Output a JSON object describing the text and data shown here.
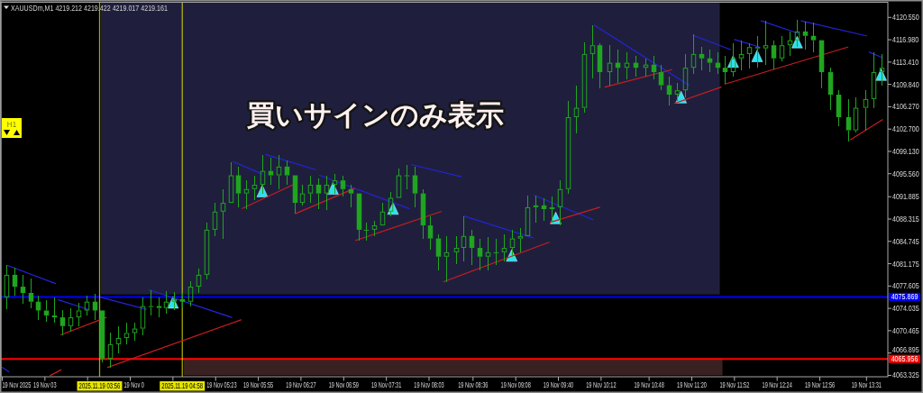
{
  "chart_data": {
    "type": "candlestick",
    "title": "XAUUSDm,M1 4219.212 4219.422 4219.017 4219.161",
    "annotations": [
      "買いサインのみ表示",
      "H1",
      "19 Nov 2025"
    ],
    "color": "#1fa51f",
    "xlim": [
      "2025-11-19T02:42",
      "2025-11-19T13:47"
    ],
    "ylim": [
      4063.1,
      4122.9
    ],
    "xticks": [
      {
        "value": "2025-11-19T02:43",
        "label": null
      },
      {
        "value": "2025-11-19T03:15",
        "label": "19 Nov 03"
      },
      {
        "value": "2025-11-19T03:47",
        "label": null
      },
      {
        "value": "2025-11-19T04:19",
        "label": "19 Nov 0"
      },
      {
        "value": "2025-11-19T04:51",
        "label": null
      },
      {
        "value": "2025-11-19T05:23",
        "label": "19 Nov 05:23"
      },
      {
        "value": "2025-11-19T05:55",
        "label": "19 Nov 05:55"
      },
      {
        "value": "2025-11-19T06:27",
        "label": "19 Nov 06:27"
      },
      {
        "value": "2025-11-19T06:59",
        "label": "19 Nov 06:59"
      },
      {
        "value": "2025-11-19T07:31",
        "label": "19 Nov 07:31"
      },
      {
        "value": "2025-11-19T08:03",
        "label": "19 Nov 08:03"
      },
      {
        "value": "2025-11-19T08:36",
        "label": "19 Nov 08:36"
      },
      {
        "value": "2025-11-19T09:08",
        "label": "19 Nov 09:08"
      },
      {
        "value": "2025-11-19T09:40",
        "label": "19 Nov 09:40"
      },
      {
        "value": "2025-11-19T10:12",
        "label": "19 Nov 10:12"
      },
      {
        "value": "2025-11-19T10:48",
        "label": "19 Nov 10:48"
      },
      {
        "value": "2025-11-19T11:20",
        "label": "19 Nov 11:20"
      },
      {
        "value": "2025-11-19T11:52",
        "label": "19 Nov 11:52"
      },
      {
        "value": "2025-11-19T12:24",
        "label": "19 Nov 12:24"
      },
      {
        "value": "2025-11-19T12:56",
        "label": "19 Nov 12:56"
      },
      {
        "value": "2025-11-19T13:31",
        "label": "19 Nov 13:31"
      }
    ],
    "yticks": [
      {
        "value": 4063.325,
        "label": "4063.325"
      },
      {
        "value": 4066.895,
        "label": "4066.895"
      },
      {
        "value": 4070.465,
        "label": "4070.465"
      },
      {
        "value": 4074.035,
        "label": "4074.035"
      },
      {
        "value": 4077.605,
        "label": "4077.605"
      },
      {
        "value": 4081.175,
        "label": "4081.175"
      },
      {
        "value": 4084.745,
        "label": "4084.745"
      },
      {
        "value": 4088.315,
        "label": "4088.315"
      },
      {
        "value": 4091.885,
        "label": "4091.885"
      },
      {
        "value": 4095.56,
        "label": "4095.560"
      },
      {
        "value": 4099.13,
        "label": "4099.130"
      },
      {
        "value": 4102.7,
        "label": "4102.700"
      },
      {
        "value": 4106.27,
        "label": "4106.270"
      },
      {
        "value": 4109.84,
        "label": "4109.840"
      },
      {
        "value": 4113.41,
        "label": "4113.410"
      },
      {
        "value": 4116.98,
        "label": "4116.980"
      },
      {
        "value": 4120.55,
        "label": "4120.550"
      }
    ],
    "x": [
      "2025-11-19T02:46",
      "2025-11-19T02:52",
      "2025-11-19T02:58",
      "2025-11-19T03:04",
      "2025-11-19T03:10",
      "2025-11-19T03:16",
      "2025-11-19T03:22",
      "2025-11-19T03:28",
      "2025-11-19T03:34",
      "2025-11-19T03:40",
      "2025-11-19T03:46",
      "2025-11-19T03:52",
      "2025-11-19T03:58",
      "2025-11-19T04:04",
      "2025-11-19T04:10",
      "2025-11-19T04:16",
      "2025-11-19T04:22",
      "2025-11-19T04:28",
      "2025-11-19T04:34",
      "2025-11-19T04:40",
      "2025-11-19T04:46",
      "2025-11-19T04:52",
      "2025-11-19T04:58",
      "2025-11-19T05:04",
      "2025-11-19T05:10",
      "2025-11-19T05:16",
      "2025-11-19T05:22",
      "2025-11-19T05:28",
      "2025-11-19T05:34",
      "2025-11-19T05:40",
      "2025-11-19T05:46",
      "2025-11-19T05:52",
      "2025-11-19T05:58",
      "2025-11-19T06:04",
      "2025-11-19T06:10",
      "2025-11-19T06:16",
      "2025-11-19T06:22",
      "2025-11-19T06:28",
      "2025-11-19T06:34",
      "2025-11-19T06:40",
      "2025-11-19T06:46",
      "2025-11-19T06:52",
      "2025-11-19T06:58",
      "2025-11-19T07:04",
      "2025-11-19T07:10",
      "2025-11-19T07:16",
      "2025-11-19T07:22",
      "2025-11-19T07:28",
      "2025-11-19T07:34",
      "2025-11-19T07:40",
      "2025-11-19T07:46",
      "2025-11-19T07:52",
      "2025-11-19T07:58",
      "2025-11-19T08:04",
      "2025-11-19T08:10",
      "2025-11-19T08:16",
      "2025-11-19T08:23",
      "2025-11-19T08:29",
      "2025-11-19T08:35",
      "2025-11-19T08:41",
      "2025-11-19T08:47",
      "2025-11-19T08:53",
      "2025-11-19T08:59",
      "2025-11-19T09:05",
      "2025-11-19T09:11",
      "2025-11-19T09:17",
      "2025-11-19T09:23",
      "2025-11-19T09:29",
      "2025-11-19T09:35",
      "2025-11-19T09:41",
      "2025-11-19T09:47",
      "2025-11-19T09:53",
      "2025-11-19T09:59",
      "2025-11-19T10:05",
      "2025-11-19T10:11",
      "2025-11-19T10:18",
      "2025-11-19T10:24",
      "2025-11-19T10:31",
      "2025-11-19T10:38",
      "2025-11-19T10:45",
      "2025-11-19T10:51",
      "2025-11-19T10:57",
      "2025-11-19T11:03",
      "2025-11-19T11:09",
      "2025-11-19T11:15",
      "2025-11-19T11:21",
      "2025-11-19T11:27",
      "2025-11-19T11:33",
      "2025-11-19T11:39",
      "2025-11-19T11:45",
      "2025-11-19T11:51",
      "2025-11-19T11:57",
      "2025-11-19T12:03",
      "2025-11-19T12:09",
      "2025-11-19T12:15",
      "2025-11-19T12:21",
      "2025-11-19T12:27",
      "2025-11-19T12:33",
      "2025-11-19T12:39",
      "2025-11-19T12:45",
      "2025-11-19T12:51",
      "2025-11-19T12:57",
      "2025-11-19T13:04",
      "2025-11-19T13:10",
      "2025-11-19T13:17",
      "2025-11-19T13:23",
      "2025-11-19T13:30",
      "2025-11-19T13:36",
      "2025-11-19T13:42"
    ],
    "ohlc": [
      [
        4075.8,
        4080.9,
        4073.9,
        4079.4
      ],
      [
        4079.4,
        4080.6,
        4076.1,
        4077.5
      ],
      [
        4077.5,
        4079.4,
        4074.8,
        4076.5
      ],
      [
        4076.5,
        4078.8,
        4074.1,
        4075.1
      ],
      [
        4075.1,
        4076.1,
        4072.2,
        4073.7
      ],
      [
        4073.7,
        4075.4,
        4071.9,
        4072.9
      ],
      [
        4072.9,
        4075.8,
        4071.8,
        4072.6
      ],
      [
        4072.6,
        4073.7,
        4069.8,
        4071.2
      ],
      [
        4071.2,
        4074.1,
        4070.3,
        4072.6
      ],
      [
        4072.6,
        4074.9,
        4071.2,
        4073.7
      ],
      [
        4073.7,
        4076.1,
        4072.9,
        4075.1
      ],
      [
        4075.1,
        4076.4,
        4072.2,
        4073.7
      ],
      [
        4073.7,
        4073.7,
        4065.4,
        4066.0
      ],
      [
        4066.0,
        4070.1,
        4064.6,
        4068.3
      ],
      [
        4068.3,
        4071.2,
        4066.9,
        4069.3
      ],
      [
        4069.3,
        4071.8,
        4068.3,
        4070.1
      ],
      [
        4070.1,
        4071.8,
        4068.9,
        4070.8
      ],
      [
        4070.8,
        4075.8,
        4069.8,
        4074.4
      ],
      [
        4074.4,
        4077.0,
        4072.9,
        4074.4
      ],
      [
        4074.4,
        4075.8,
        4072.6,
        4074.1
      ],
      [
        4074.1,
        4076.8,
        4073.2,
        4075.1
      ],
      [
        4075.1,
        4076.7,
        4073.7,
        4075.5
      ],
      [
        4075.5,
        4076.5,
        4074.1,
        4075.1
      ],
      [
        4075.1,
        4078.4,
        4074.4,
        4077.5
      ],
      [
        4077.5,
        4080.4,
        4076.5,
        4079.4
      ],
      [
        4079.4,
        4087.8,
        4078.7,
        4086.6
      ],
      [
        4086.6,
        4090.9,
        4085.6,
        4089.5
      ],
      [
        4089.5,
        4093.1,
        4085.2,
        4090.9
      ],
      [
        4090.9,
        4097.4,
        4090.9,
        4095.3
      ],
      [
        4095.3,
        4096.7,
        4090.2,
        4092.4
      ],
      [
        4092.4,
        4094.5,
        4089.9,
        4093.1
      ],
      [
        4093.1,
        4095.3,
        4091.4,
        4093.8
      ],
      [
        4093.8,
        4098.6,
        4092.4,
        4096.0
      ],
      [
        4096.0,
        4098.1,
        4093.8,
        4095.3
      ],
      [
        4095.3,
        4098.6,
        4093.1,
        4096.7
      ],
      [
        4096.7,
        4097.7,
        4093.8,
        4095.3
      ],
      [
        4095.3,
        4095.3,
        4089.2,
        4090.9
      ],
      [
        4090.9,
        4093.8,
        4090.5,
        4092.4
      ],
      [
        4092.4,
        4095.3,
        4090.9,
        4093.8
      ],
      [
        4093.8,
        4094.8,
        4089.9,
        4092.4
      ],
      [
        4092.4,
        4095.3,
        4089.8,
        4093.8
      ],
      [
        4093.8,
        4095.5,
        4092.4,
        4094.5
      ],
      [
        4094.5,
        4095.3,
        4091.9,
        4093.1
      ],
      [
        4093.1,
        4093.8,
        4090.2,
        4092.4
      ],
      [
        4092.4,
        4092.4,
        4084.9,
        4086.6
      ],
      [
        4086.6,
        4087.8,
        4084.9,
        4086.6
      ],
      [
        4086.6,
        4088.1,
        4085.6,
        4087.3
      ],
      [
        4087.3,
        4090.9,
        4087.3,
        4089.5
      ],
      [
        4089.5,
        4092.7,
        4088.8,
        4091.7
      ],
      [
        4091.7,
        4096.4,
        4091.7,
        4095.3
      ],
      [
        4095.3,
        4097.0,
        4093.1,
        4095.3
      ],
      [
        4095.3,
        4096.7,
        4090.2,
        4092.4
      ],
      [
        4092.4,
        4093.1,
        4085.2,
        4087.3
      ],
      [
        4087.3,
        4088.8,
        4083.4,
        4085.2
      ],
      [
        4085.2,
        4085.9,
        4080.1,
        4082.3
      ],
      [
        4082.3,
        4085.6,
        4078.2,
        4083.0
      ],
      [
        4083.0,
        4085.6,
        4081.1,
        4083.7
      ],
      [
        4083.7,
        4088.8,
        4081.6,
        4085.6
      ],
      [
        4085.6,
        4086.6,
        4080.9,
        4083.7
      ],
      [
        4083.7,
        4085.2,
        4080.1,
        4082.3
      ],
      [
        4082.3,
        4085.5,
        4080.1,
        4083.0
      ],
      [
        4083.0,
        4085.2,
        4080.9,
        4083.0
      ],
      [
        4083.0,
        4085.9,
        4081.6,
        4083.7
      ],
      [
        4083.7,
        4086.6,
        4082.3,
        4085.2
      ],
      [
        4085.2,
        4086.9,
        4083.0,
        4085.6
      ],
      [
        4085.6,
        4092.1,
        4085.6,
        4090.2
      ],
      [
        4090.2,
        4092.1,
        4087.8,
        4090.5
      ],
      [
        4090.5,
        4091.7,
        4088.1,
        4089.9
      ],
      [
        4089.9,
        4091.9,
        4087.8,
        4090.2
      ],
      [
        4090.2,
        4094.5,
        4087.3,
        4093.1
      ],
      [
        4093.1,
        4107.2,
        4092.4,
        4104.6
      ],
      [
        4104.6,
        4109.7,
        4102.0,
        4106.1
      ],
      [
        4106.1,
        4116.6,
        4105.3,
        4114.7
      ],
      [
        4114.7,
        4119.3,
        4110.8,
        4116.1
      ],
      [
        4116.1,
        4116.4,
        4109.2,
        4111.8
      ],
      [
        4111.8,
        4116.1,
        4109.7,
        4113.3
      ],
      [
        4113.3,
        4115.4,
        4110.1,
        4112.5
      ],
      [
        4112.5,
        4115.0,
        4110.7,
        4113.3
      ],
      [
        4113.3,
        4114.4,
        4111.1,
        4112.5
      ],
      [
        4112.5,
        4114.0,
        4111.1,
        4113.0
      ],
      [
        4113.0,
        4114.4,
        4110.7,
        4111.8
      ],
      [
        4111.8,
        4113.0,
        4108.9,
        4109.7
      ],
      [
        4109.7,
        4111.1,
        4106.5,
        4108.2
      ],
      [
        4108.2,
        4110.1,
        4107.2,
        4108.9
      ],
      [
        4108.9,
        4114.7,
        4107.8,
        4112.5
      ],
      [
        4112.5,
        4117.9,
        4111.5,
        4114.7
      ],
      [
        4114.7,
        4115.8,
        4112.1,
        4114.0
      ],
      [
        4114.0,
        4115.4,
        4111.8,
        4113.3
      ],
      [
        4113.3,
        4115.0,
        4111.5,
        4112.5
      ],
      [
        4112.5,
        4114.4,
        4109.9,
        4111.8
      ],
      [
        4111.8,
        4116.4,
        4111.1,
        4114.0
      ],
      [
        4114.0,
        4116.9,
        4112.1,
        4114.7
      ],
      [
        4114.7,
        4116.4,
        4112.4,
        4115.8
      ],
      [
        4115.8,
        4117.6,
        4112.5,
        4115.6
      ],
      [
        4115.6,
        4120.0,
        4113.0,
        4116.1
      ],
      [
        4116.1,
        4116.9,
        4112.2,
        4114.0
      ],
      [
        4114.0,
        4117.6,
        4113.5,
        4116.1
      ],
      [
        4116.1,
        4118.3,
        4114.4,
        4116.9
      ],
      [
        4116.9,
        4120.2,
        4115.8,
        4118.3
      ],
      [
        4118.3,
        4119.9,
        4115.4,
        4117.6
      ],
      [
        4117.6,
        4119.7,
        4115.0,
        4116.9
      ],
      [
        4116.9,
        4116.9,
        4109.2,
        4111.8
      ],
      [
        4111.8,
        4112.5,
        4105.8,
        4108.2
      ],
      [
        4108.2,
        4108.9,
        4103.2,
        4104.6
      ],
      [
        4104.6,
        4107.5,
        4100.7,
        4102.5
      ],
      [
        4102.5,
        4107.8,
        4102.2,
        4106.1
      ],
      [
        4106.1,
        4108.9,
        4102.5,
        4107.5
      ],
      [
        4107.5,
        4115.0,
        4106.1,
        4111.8
      ],
      [
        4111.8,
        4114.7,
        4109.7,
        4112.5
      ]
    ],
    "series": [
      {
        "type": "scatter",
        "marker": "triangle",
        "color": "#2de0f0",
        "x": [
          "2025-11-19T04:51",
          "2025-11-19T05:58",
          "2025-11-19T06:51",
          "2025-11-19T07:36",
          "2025-11-19T09:05",
          "2025-11-19T09:38",
          "2025-11-19T11:12",
          "2025-11-19T11:51",
          "2025-11-19T12:09",
          "2025-11-19T12:39",
          "2025-11-19T13:42"
        ],
        "values": [
          4075.0,
          4092.8,
          4093.2,
          4090.0,
          4082.5,
          4088.5,
          4107.8,
          4113.5,
          4114.4,
          4116.6,
          4111.4
        ]
      },
      {
        "type": "line",
        "color": "#2424d8",
        "x": [
          "2025-11-19T02:43",
          "2025-11-19T02:48"
        ],
        "values": [
          4064.6,
          4063.9
        ]
      },
      {
        "type": "line",
        "color": "#2424d8",
        "x": [
          "2025-11-19T02:47",
          "2025-11-19T03:23"
        ],
        "values": [
          4080.9,
          4078.0
        ]
      },
      {
        "type": "line",
        "color": "#2424d8",
        "x": [
          "2025-11-19T03:25",
          "2025-11-19T03:47"
        ],
        "values": [
          4075.4,
          4073.9
        ]
      },
      {
        "type": "line",
        "color": "#2424d8",
        "x": [
          "2025-11-19T03:57",
          "2025-11-19T04:31"
        ],
        "values": [
          4075.8,
          4073.9
        ]
      },
      {
        "type": "line",
        "color": "#2424d8",
        "x": [
          "2025-11-19T04:33",
          "2025-11-19T05:35"
        ],
        "values": [
          4077.0,
          4072.6
        ]
      },
      {
        "type": "line",
        "color": "#2424d8",
        "x": [
          "2025-11-19T05:36",
          "2025-11-19T05:58"
        ],
        "values": [
          4097.5,
          4095.5
        ]
      },
      {
        "type": "line",
        "color": "#2424d8",
        "x": [
          "2025-11-19T06:01",
          "2025-11-19T06:38"
        ],
        "values": [
          4098.6,
          4096.2
        ]
      },
      {
        "type": "line",
        "color": "#2424d8",
        "x": [
          "2025-11-19T06:41",
          "2025-11-19T07:48"
        ],
        "values": [
          4095.3,
          4090.0
        ]
      },
      {
        "type": "line",
        "color": "#2424d8",
        "x": [
          "2025-11-19T07:50",
          "2025-11-19T08:27"
        ],
        "values": [
          4097.0,
          4095.1
        ]
      },
      {
        "type": "line",
        "color": "#2424d8",
        "x": [
          "2025-11-19T08:29",
          "2025-11-19T09:21"
        ],
        "values": [
          4088.8,
          4085.3
        ]
      },
      {
        "type": "line",
        "color": "#2424d8",
        "x": [
          "2025-11-19T09:22",
          "2025-11-19T10:06"
        ],
        "values": [
          4092.1,
          4088.2
        ]
      },
      {
        "type": "line",
        "color": "#2424d8",
        "x": [
          "2025-11-19T10:07",
          "2025-11-19T11:18"
        ],
        "values": [
          4119.3,
          4109.7
        ]
      },
      {
        "type": "line",
        "color": "#2424d8",
        "x": [
          "2025-11-19T11:22",
          "2025-11-19T11:49"
        ],
        "values": [
          4117.6,
          4115.4
        ]
      },
      {
        "type": "line",
        "color": "#2424d8",
        "x": [
          "2025-11-19T11:52",
          "2025-11-19T12:11"
        ],
        "values": [
          4117.0,
          4115.8
        ]
      },
      {
        "type": "line",
        "color": "#2424d8",
        "x": [
          "2025-11-19T12:12",
          "2025-11-19T12:40"
        ],
        "values": [
          4120.0,
          4118.0
        ]
      },
      {
        "type": "line",
        "color": "#2424d8",
        "x": [
          "2025-11-19T12:42",
          "2025-11-19T13:31"
        ],
        "values": [
          4120.0,
          4117.6
        ]
      },
      {
        "type": "line",
        "color": "#2424d8",
        "x": [
          "2025-11-19T13:33",
          "2025-11-19T13:43"
        ],
        "values": [
          4115.0,
          4114.1
        ]
      },
      {
        "type": "line",
        "color": "#c81e1e",
        "x": [
          "2025-11-19T03:19",
          "2025-11-19T03:27"
        ],
        "values": [
          4063.3,
          4064.2
        ]
      },
      {
        "type": "line",
        "color": "#c81e1e",
        "x": [
          "2025-11-19T03:27",
          "2025-11-19T04:01"
        ],
        "values": [
          4069.8,
          4072.6
        ]
      },
      {
        "type": "line",
        "color": "#c81e1e",
        "x": [
          "2025-11-19T04:02",
          "2025-11-19T05:42"
        ],
        "values": [
          4064.6,
          4072.2
        ]
      },
      {
        "type": "line",
        "color": "#c81e1e",
        "x": [
          "2025-11-19T05:43",
          "2025-11-19T06:21"
        ],
        "values": [
          4090.0,
          4093.8
        ]
      },
      {
        "type": "line",
        "color": "#c81e1e",
        "x": [
          "2025-11-19T06:23",
          "2025-11-19T07:07"
        ],
        "values": [
          4089.2,
          4093.2
        ]
      },
      {
        "type": "line",
        "color": "#c81e1e",
        "x": [
          "2025-11-19T07:08",
          "2025-11-19T08:12"
        ],
        "values": [
          4084.9,
          4089.5
        ]
      },
      {
        "type": "line",
        "color": "#c81e1e",
        "x": [
          "2025-11-19T08:14",
          "2025-11-19T09:33"
        ],
        "values": [
          4078.3,
          4084.6
        ]
      },
      {
        "type": "line",
        "color": "#c81e1e",
        "x": [
          "2025-11-19T09:34",
          "2025-11-19T10:11"
        ],
        "values": [
          4087.8,
          4090.2
        ]
      },
      {
        "type": "line",
        "color": "#c81e1e",
        "x": [
          "2025-11-19T10:15",
          "2025-11-19T11:05"
        ],
        "values": [
          4109.4,
          4112.2
        ]
      },
      {
        "type": "line",
        "color": "#c81e1e",
        "x": [
          "2025-11-19T11:07",
          "2025-11-19T11:42"
        ],
        "values": [
          4106.8,
          4109.4
        ]
      },
      {
        "type": "line",
        "color": "#c81e1e",
        "x": [
          "2025-11-19T11:45",
          "2025-11-19T13:17"
        ],
        "values": [
          4109.9,
          4115.8
        ]
      },
      {
        "type": "line",
        "color": "#c81e1e",
        "x": [
          "2025-11-19T13:19",
          "2025-11-19T13:43"
        ],
        "values": [
          4101.0,
          4104.2
        ]
      }
    ],
    "ref_lines": [
      {
        "axis": "y",
        "value": 4075.869,
        "label": "4075.869",
        "color": "#0000ff"
      },
      {
        "axis": "y",
        "value": 4065.956,
        "label": "4065.956",
        "color": "#ff0000"
      },
      {
        "axis": "x",
        "value": "2025-11-19T03:56",
        "label": "2025.11.19 03:56",
        "color": "#e6e600"
      },
      {
        "axis": "x",
        "value": "2025-11-19T04:58",
        "label": "2025.11.19 04:58",
        "color": "#e6e600"
      }
    ],
    "bands": [
      {
        "axis": "x",
        "from": "2025-11-19T03:57",
        "to": "2025-11-19T11:41",
        "color": "#1f1f3d"
      },
      {
        "axis": "x",
        "from": "2025-11-19T04:59",
        "to": "2025-11-19T11:43",
        "color": "#3a2121"
      }
    ]
  }
}
